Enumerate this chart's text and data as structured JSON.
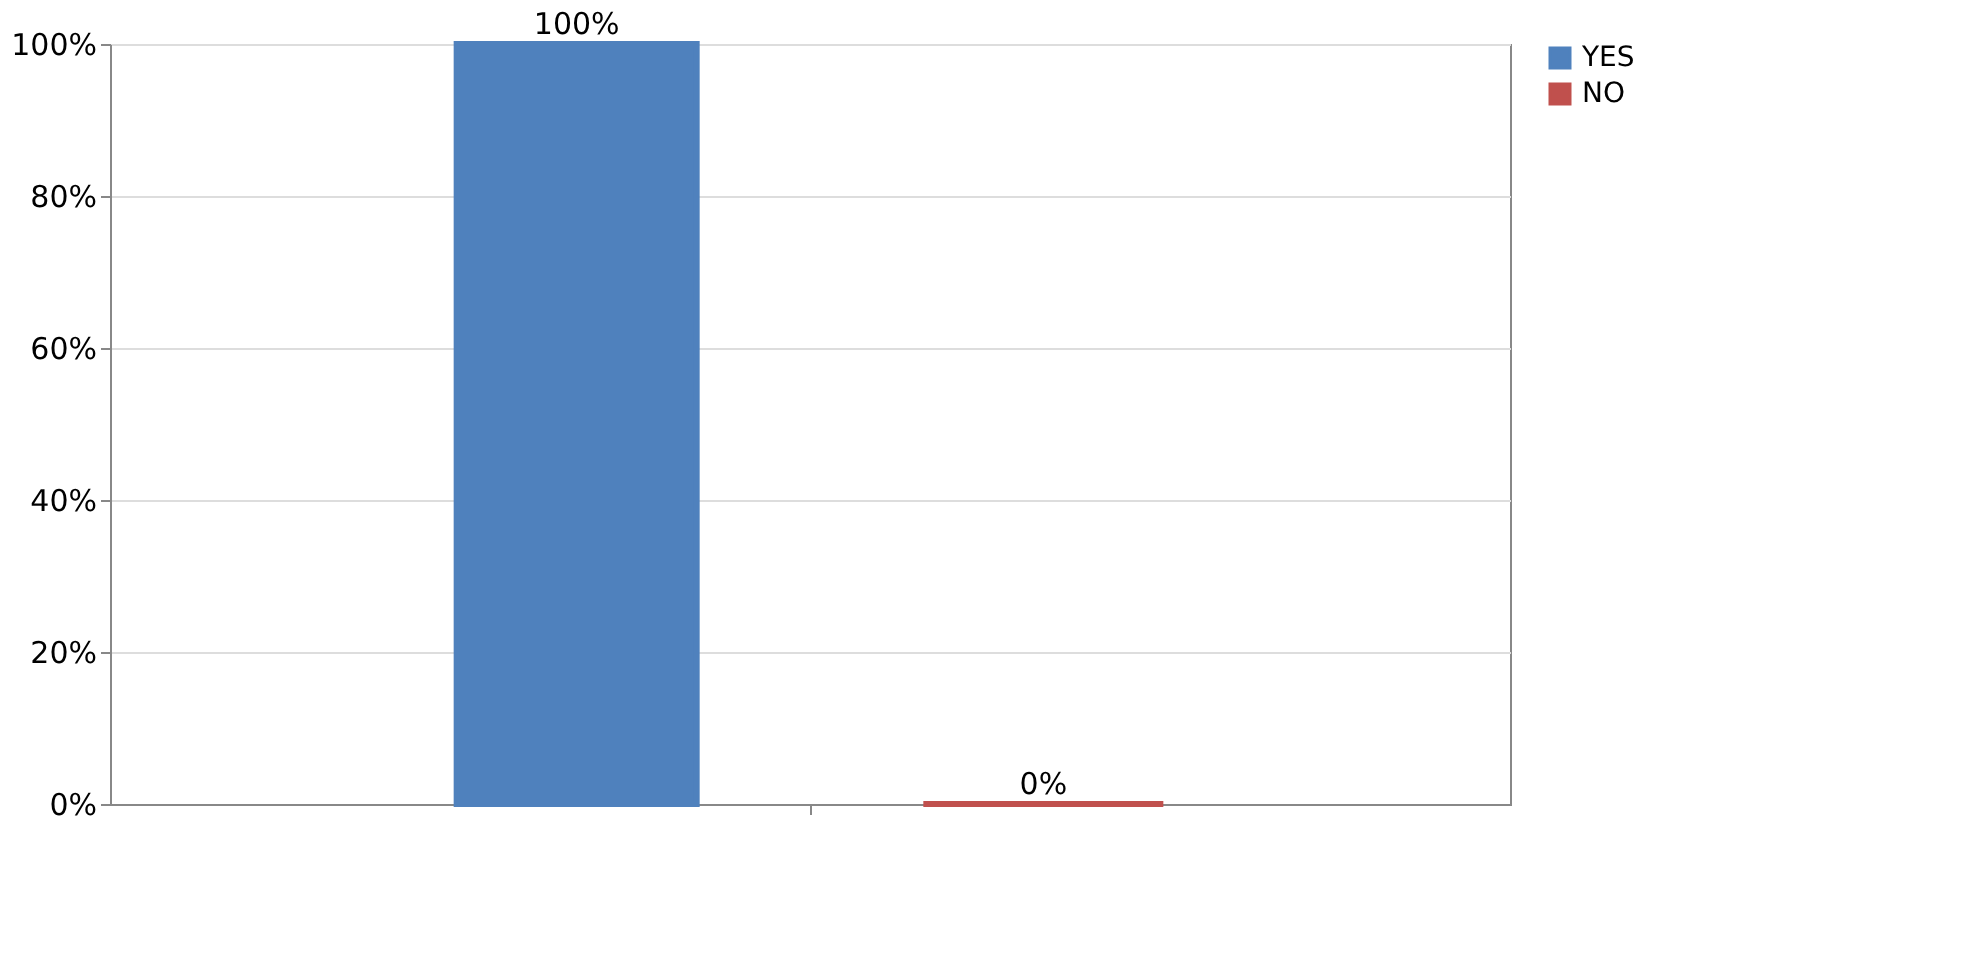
{
  "chart_data": {
    "type": "bar",
    "categories": [
      null
    ],
    "series": [
      {
        "name": "YES",
        "color": "#4f81bd",
        "values": [
          100
        ],
        "value_labels": [
          "100%"
        ]
      },
      {
        "name": "NO",
        "color": "#c0504d",
        "values": [
          0
        ],
        "value_labels": [
          "0%"
        ]
      }
    ],
    "ylim": [
      0,
      100
    ],
    "yticks": [
      {
        "value": 0,
        "label": "0%"
      },
      {
        "value": 20,
        "label": "20%"
      },
      {
        "value": 40,
        "label": "40%"
      },
      {
        "value": 60,
        "label": "60%"
      },
      {
        "value": 80,
        "label": "80%"
      },
      {
        "value": 100,
        "label": "100%"
      }
    ],
    "grid": "y",
    "legend": "right"
  }
}
